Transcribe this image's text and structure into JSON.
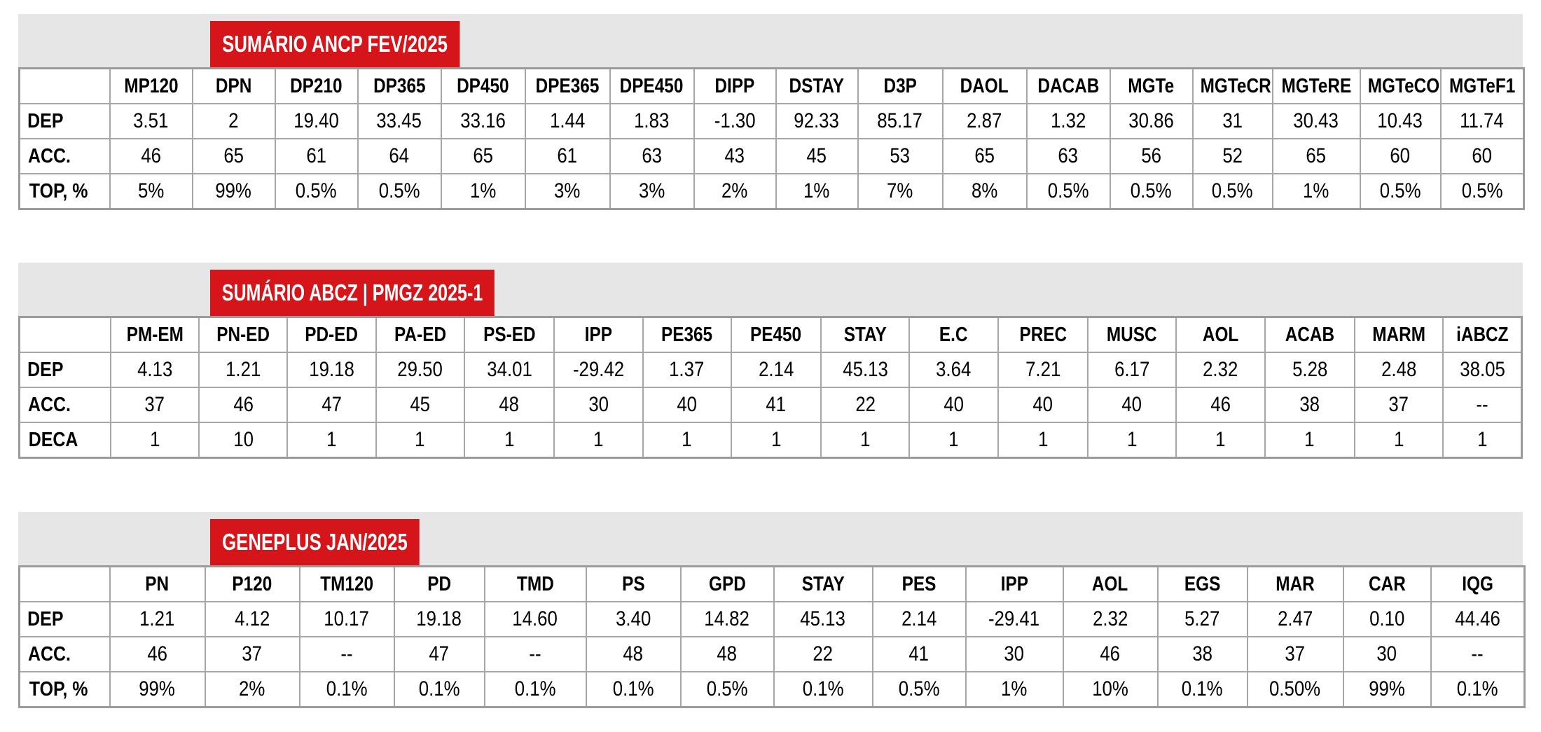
{
  "tables": [
    {
      "title": "SUMÁRIO ANCP FEV/2025",
      "columns": [
        "MP120",
        "DPN",
        "DP210",
        "DP365",
        "DP450",
        "DPE365",
        "DPE450",
        "DIPP",
        "DSTAY",
        "D3P",
        "DAOL",
        "DACAB",
        "MGTe",
        "MGTeCR",
        "MGTeRE",
        "MGTeCO",
        "MGTeF1"
      ],
      "rows": [
        {
          "label": "DEP",
          "values": [
            "3.51",
            "2",
            "19.40",
            "33.45",
            "33.16",
            "1.44",
            "1.83",
            "-1.30",
            "92.33",
            "85.17",
            "2.87",
            "1.32",
            "30.86",
            "31",
            "30.43",
            "10.43",
            "11.74"
          ]
        },
        {
          "label": "ACC.",
          "values": [
            "46",
            "65",
            "61",
            "64",
            "65",
            "61",
            "63",
            "43",
            "45",
            "53",
            "65",
            "63",
            "56",
            "52",
            "65",
            "60",
            "60"
          ]
        },
        {
          "label": "TOP, %",
          "values": [
            "5%",
            "99%",
            "0.5%",
            "0.5%",
            "1%",
            "3%",
            "3%",
            "2%",
            "1%",
            "7%",
            "8%",
            "0.5%",
            "0.5%",
            "0.5%",
            "1%",
            "0.5%",
            "0.5%"
          ]
        }
      ]
    },
    {
      "title": "SUMÁRIO ABCZ | PMGZ 2025-1",
      "columns": [
        "PM-EM",
        "PN-ED",
        "PD-ED",
        "PA-ED",
        "PS-ED",
        "IPP",
        "PE365",
        "PE450",
        "STAY",
        "E.C",
        "PREC",
        "MUSC",
        "AOL",
        "ACAB",
        "MARM",
        "iABCZ"
      ],
      "rows": [
        {
          "label": "DEP",
          "values": [
            "4.13",
            "1.21",
            "19.18",
            "29.50",
            "34.01",
            "-29.42",
            "1.37",
            "2.14",
            "45.13",
            "3.64",
            "7.21",
            "6.17",
            "2.32",
            "5.28",
            "2.48",
            "38.05"
          ]
        },
        {
          "label": "ACC.",
          "values": [
            "37",
            "46",
            "47",
            "45",
            "48",
            "30",
            "40",
            "41",
            "22",
            "40",
            "40",
            "40",
            "46",
            "38",
            "37",
            "--"
          ]
        },
        {
          "label": "DECA",
          "values": [
            "1",
            "10",
            "1",
            "1",
            "1",
            "1",
            "1",
            "1",
            "1",
            "1",
            "1",
            "1",
            "1",
            "1",
            "1",
            "1"
          ]
        }
      ]
    },
    {
      "title": "GENEPLUS JAN/2025",
      "columns": [
        "PN",
        "P120",
        "TM120",
        "PD",
        "TMD",
        "PS",
        "GPD",
        "STAY",
        "PES",
        "IPP",
        "AOL",
        "EGS",
        "MAR",
        "CAR",
        "IQG"
      ],
      "rows": [
        {
          "label": "DEP",
          "values": [
            "1.21",
            "4.12",
            "10.17",
            "19.18",
            "14.60",
            "3.40",
            "14.82",
            "45.13",
            "2.14",
            "-29.41",
            "2.32",
            "5.27",
            "2.47",
            "0.10",
            "44.46"
          ]
        },
        {
          "label": "ACC.",
          "values": [
            "46",
            "37",
            "--",
            "47",
            "--",
            "48",
            "48",
            "22",
            "41",
            "30",
            "46",
            "38",
            "37",
            "30",
            "--"
          ]
        },
        {
          "label": "TOP, %",
          "values": [
            "99%",
            "2%",
            "0.1%",
            "0.1%",
            "0.1%",
            "0.1%",
            "0.5%",
            "0.1%",
            "0.5%",
            "1%",
            "10%",
            "0.1%",
            "0.50%",
            "99%",
            "0.1%"
          ]
        }
      ]
    }
  ]
}
